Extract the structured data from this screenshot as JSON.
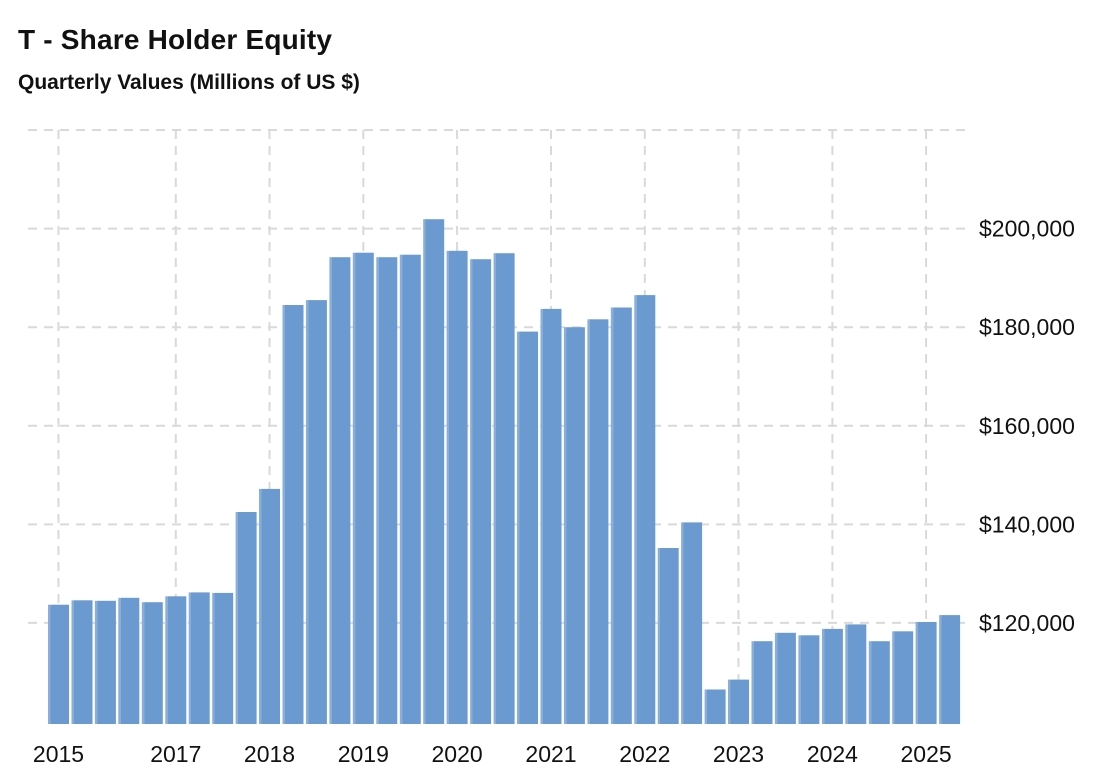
{
  "header": {
    "title": "T - Share Holder Equity",
    "subtitle": "Quarterly Values (Millions of US $)"
  },
  "chart_data": {
    "type": "bar",
    "title": "T - Share Holder Equity",
    "subtitle": "Quarterly Values (Millions of US $)",
    "ylabel": "Millions of US $",
    "xlabel": "",
    "x": [
      "2015-Q4",
      "2016-Q1",
      "2016-Q2",
      "2016-Q3",
      "2016-Q4",
      "2017-Q1",
      "2017-Q2",
      "2017-Q3",
      "2017-Q4",
      "2018-Q1",
      "2018-Q2",
      "2018-Q3",
      "2018-Q4",
      "2019-Q1",
      "2019-Q2",
      "2019-Q3",
      "2019-Q4",
      "2020-Q1",
      "2020-Q2",
      "2020-Q3",
      "2020-Q4",
      "2021-Q1",
      "2021-Q2",
      "2021-Q3",
      "2021-Q4",
      "2022-Q1",
      "2022-Q2",
      "2022-Q3",
      "2022-Q4",
      "2023-Q1",
      "2023-Q2",
      "2023-Q3",
      "2023-Q4",
      "2024-Q1",
      "2024-Q2",
      "2024-Q3",
      "2024-Q4",
      "2025-Q1",
      "2025-Q2"
    ],
    "values": [
      123700,
      124600,
      124500,
      125100,
      124200,
      125400,
      126200,
      126100,
      142500,
      147200,
      184500,
      185500,
      194200,
      195100,
      194200,
      194700,
      201900,
      195500,
      193800,
      195000,
      179100,
      183700,
      180000,
      181600,
      184000,
      186500,
      135200,
      140400,
      106500,
      108500,
      116300,
      118000,
      117500,
      118800,
      119700,
      116300,
      118300,
      120200,
      121600
    ],
    "x_ticks": [
      {
        "label": "2015",
        "bar_index": 0
      },
      {
        "label": "2017",
        "bar_index": 5
      },
      {
        "label": "2018",
        "bar_index": 9
      },
      {
        "label": "2019",
        "bar_index": 13
      },
      {
        "label": "2020",
        "bar_index": 17
      },
      {
        "label": "2021",
        "bar_index": 21
      },
      {
        "label": "2022",
        "bar_index": 25
      },
      {
        "label": "2023",
        "bar_index": 29
      },
      {
        "label": "2024",
        "bar_index": 33
      },
      {
        "label": "2025",
        "bar_index": 37
      }
    ],
    "y_ticks": [
      {
        "value": 200000,
        "label": "$200,000"
      },
      {
        "value": 180000,
        "label": "$180,000"
      },
      {
        "value": 160000,
        "label": "$160,000"
      },
      {
        "value": 140000,
        "label": "$140,000"
      },
      {
        "value": 120000,
        "label": "$120,000"
      }
    ],
    "grid_values": [
      220000,
      200000,
      180000,
      160000,
      140000,
      120000
    ],
    "ylim": [
      99500,
      220000
    ],
    "grid": "dashed",
    "legend": "none",
    "colors": {
      "bar": "#6b9ad0",
      "bar_edge_highlight": "#8aaeda",
      "grid": "#d9d9d9",
      "text": "#111111"
    }
  }
}
